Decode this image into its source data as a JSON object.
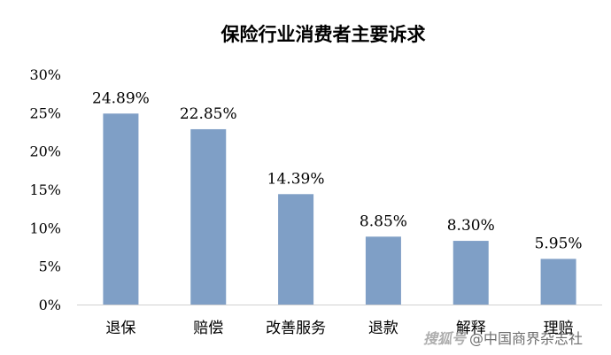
{
  "chart_data": {
    "type": "bar",
    "title": "保险行业消费者主要诉求",
    "categories": [
      "退保",
      "赔偿",
      "改善服务",
      "退款",
      "解释",
      "理赔"
    ],
    "values": [
      24.89,
      22.85,
      14.39,
      8.85,
      8.3,
      5.95
    ],
    "data_labels": [
      "24.89%",
      "22.85%",
      "14.39%",
      "8.85%",
      "8.30%",
      "5.95%"
    ],
    "ylim": [
      0,
      30
    ],
    "yticks": [
      "0%",
      "5%",
      "10%",
      "15%",
      "20%",
      "25%",
      "30%"
    ],
    "bar_color": "#7f9fc6",
    "grid": false,
    "legend": "none"
  },
  "watermark": {
    "logo": "搜狐号",
    "text": "@中国商界杂志社"
  }
}
